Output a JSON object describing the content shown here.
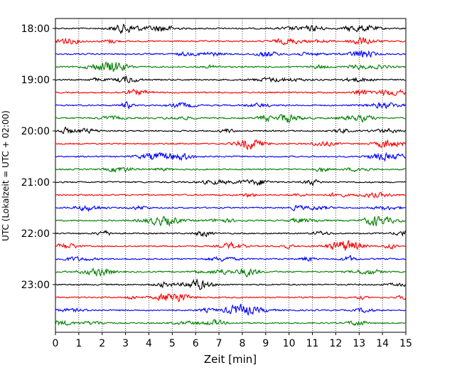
{
  "chart_data": {
    "type": "line",
    "title": "",
    "xlabel": "Zeit  [min]",
    "ylabel": "UTC (Lokalzeit = UTC + 02:00)",
    "xlim": [
      0,
      15
    ],
    "x_ticks": [
      "0",
      "1",
      "2",
      "3",
      "4",
      "5",
      "6",
      "7",
      "8",
      "9",
      "10",
      "11",
      "12",
      "13",
      "14",
      "15"
    ],
    "y_tick_labels": [
      "18:00",
      "19:00",
      "20:00",
      "21:00",
      "22:00",
      "23:00"
    ],
    "grid": "vertical dotted at each minute",
    "trace_interval_min": 15,
    "start_time": "18:00",
    "trace_count": 24,
    "colors": [
      "#000000",
      "#ff0000",
      "#0000ff",
      "#008000"
    ]
  }
}
